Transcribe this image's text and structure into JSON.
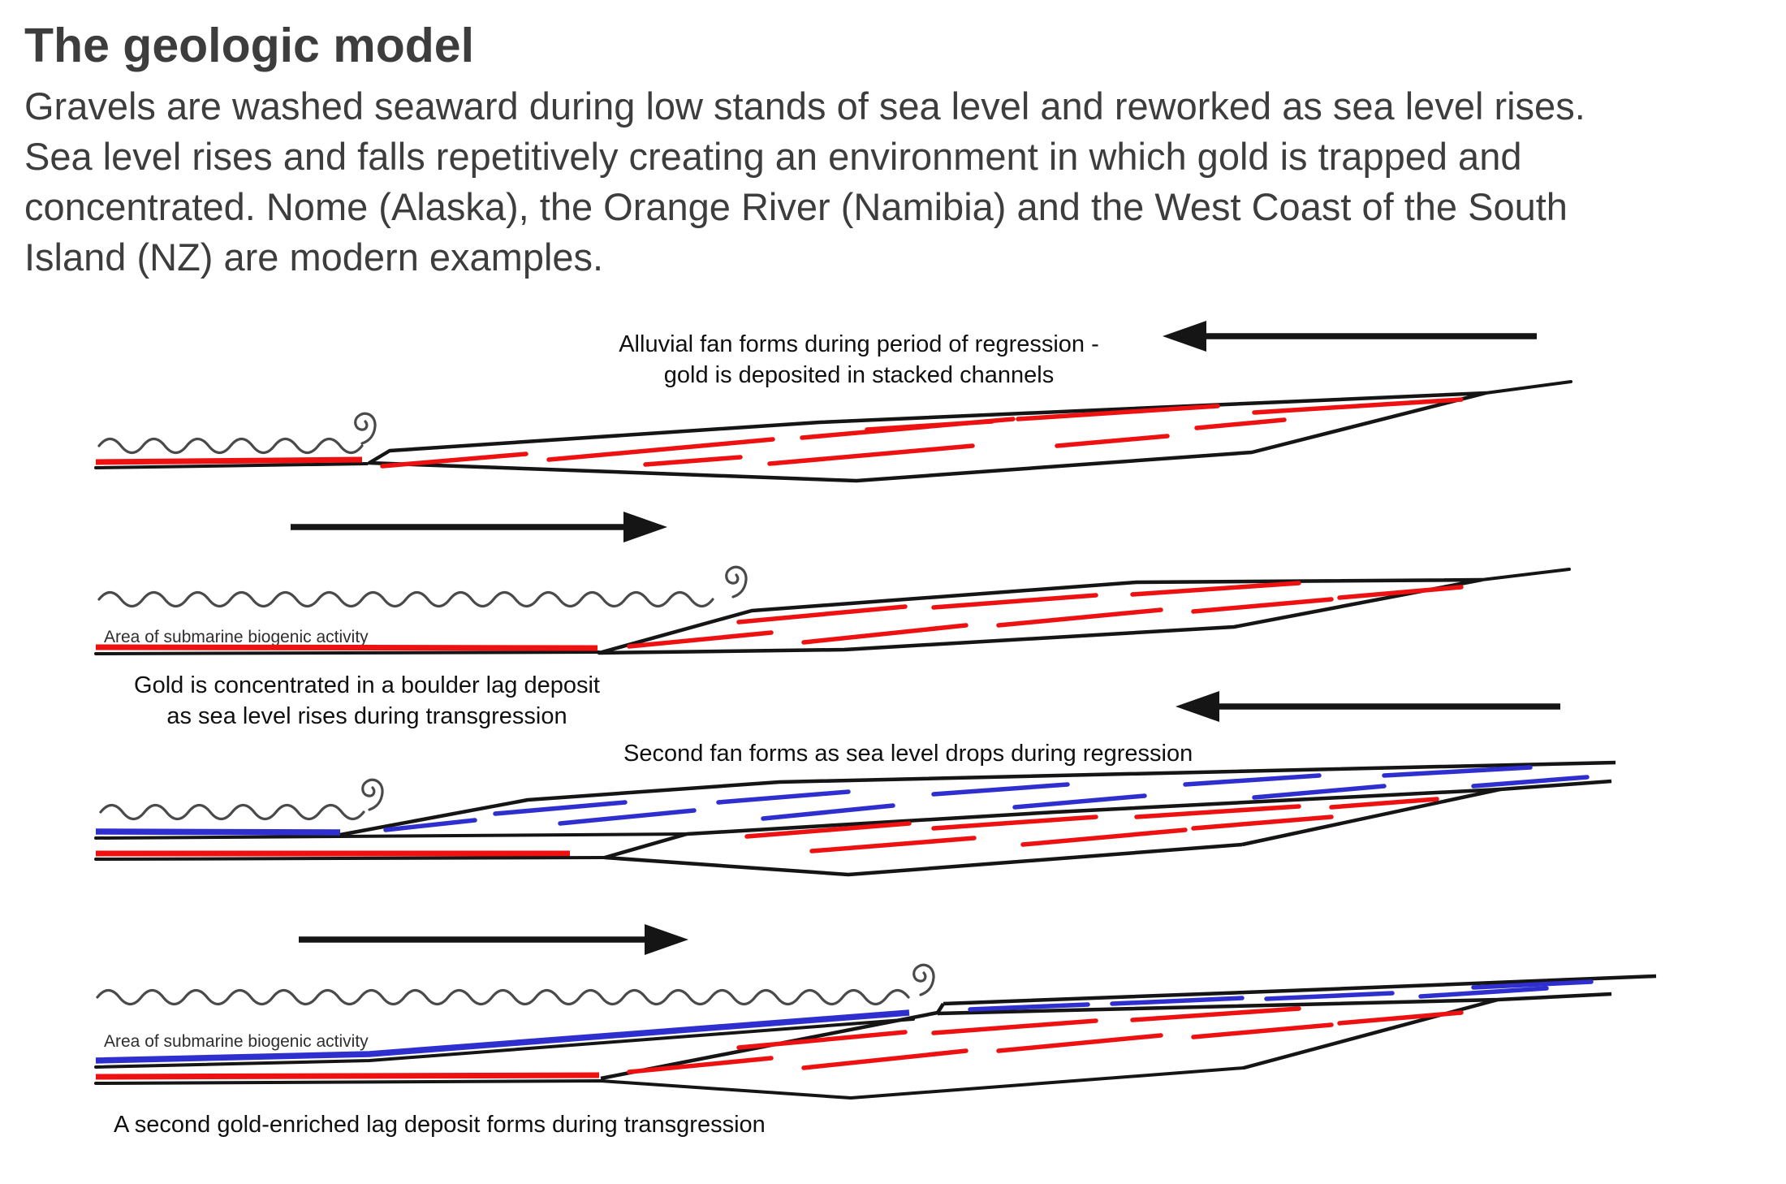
{
  "header": {
    "title": "The geologic model",
    "paragraph_lines": [
      "Gravels are washed seaward during low stands of sea level and reworked as sea level rises.",
      "Sea level rises and falls repetitively creating an environment in which gold is trapped and",
      "concentrated. Nome (Alaska), the Orange River (Namibia) and the West Coast of the South",
      "Island (NZ) are modern examples."
    ]
  },
  "diagram": {
    "colors": {
      "channel_red": "#ee1111",
      "lag_blue": "#2f2fd0",
      "line_black": "#151515",
      "sea_gray": "#4a4a4a",
      "text_gray": "#3d3d3d"
    },
    "arrows": [
      {
        "panel": 1,
        "direction": "left",
        "meaning": "regression (seaward)"
      },
      {
        "panel": 2,
        "direction": "right",
        "meaning": "transgression (landward)"
      },
      {
        "panel": 3,
        "direction": "left",
        "meaning": "regression (seaward)"
      },
      {
        "panel": 4,
        "direction": "right",
        "meaning": "transgression (landward)"
      }
    ],
    "panel1": {
      "caption_line1": "Alluvial fan forms during period of regression -",
      "caption_line2": "gold is deposited in stacked channels"
    },
    "panel2": {
      "biogenic_label": "Area of submarine biogenic activity",
      "caption_line1": "Gold is concentrated in a boulder lag deposit",
      "caption_line2": "as sea level rises during transgression"
    },
    "panel3": {
      "caption": "Second fan forms as sea level drops during regression"
    },
    "panel4": {
      "biogenic_label": "Area of submarine biogenic activity",
      "caption": "A second gold-enriched lag deposit forms during transgression"
    }
  }
}
